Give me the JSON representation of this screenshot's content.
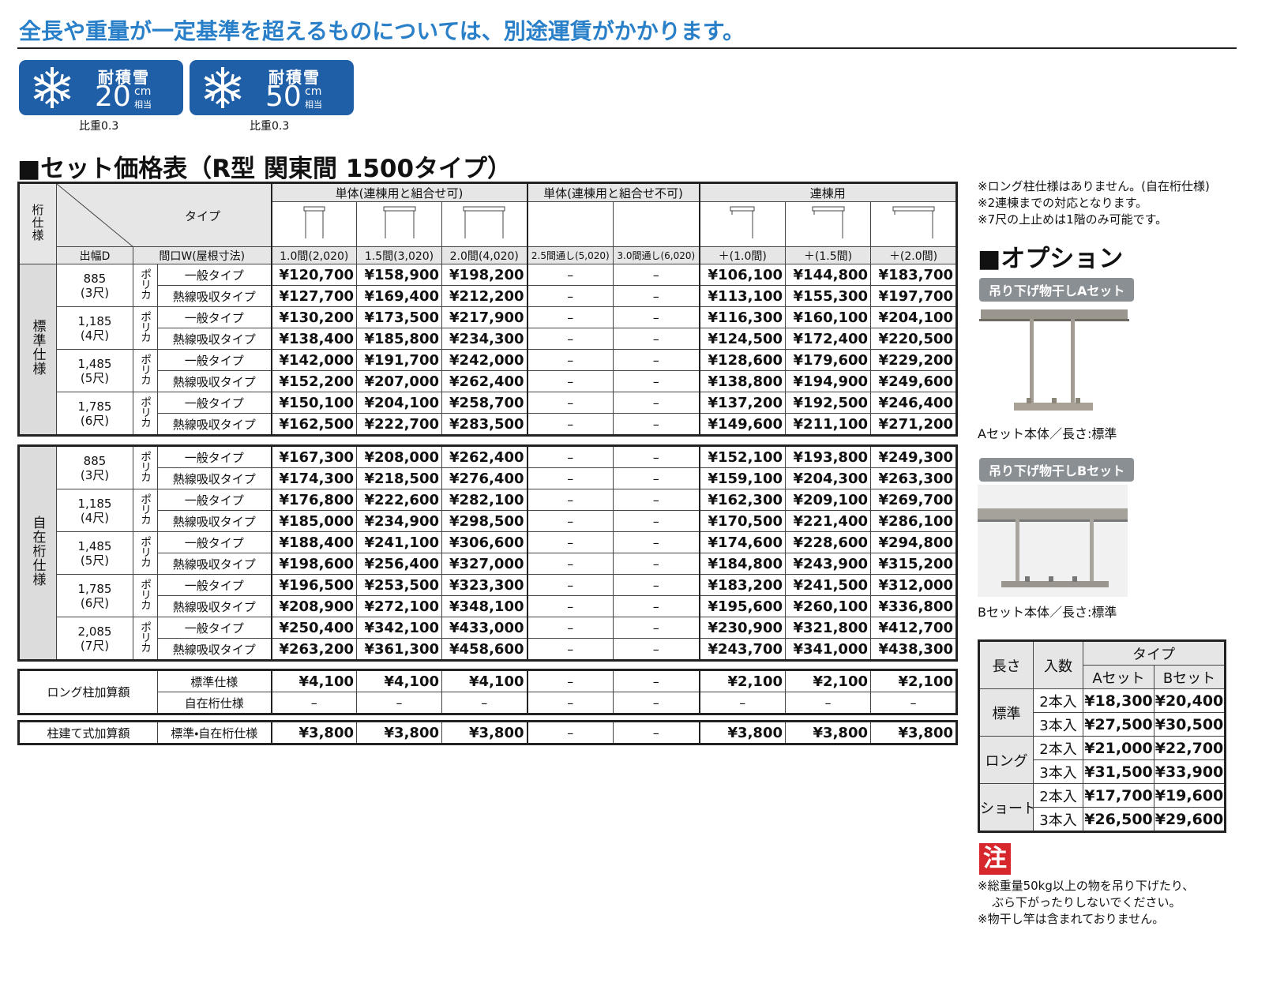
{
  "header": {
    "notice": "全長や重量が一定基準を超えるものについては、別途運賃がかかります。"
  },
  "badges": [
    {
      "label": "耐積雪",
      "value": "20",
      "unit": "cm",
      "unit_sub": "相当",
      "note": "比重0.3"
    },
    {
      "label": "耐積雪",
      "value": "50",
      "unit": "cm",
      "unit_sub": "相当",
      "note": "比重0.3"
    }
  ],
  "price_table": {
    "title": "■セット価格表（R型 関東間 1500タイプ）",
    "corner": {
      "spec": "桁仕様",
      "type": "タイプ",
      "depth": "出幅D",
      "width": "間口W(屋根寸法)"
    },
    "groups": [
      {
        "label": "単体(連棟用と組合せ可)",
        "span": 3
      },
      {
        "label": "単体(連棟用と組合せ不可)",
        "span": 2
      },
      {
        "label": "連棟用",
        "span": 3
      }
    ],
    "columns": [
      "1.0間(2,020)",
      "1.5間(3,020)",
      "2.0間(4,020)",
      "2.5間通し(5,020)",
      "3.0間通し(6,020)",
      "＋(1.0間)",
      "＋(1.5間)",
      "＋(2.0間)"
    ],
    "sections": [
      {
        "label": "標準仕様",
        "groups": [
          {
            "depth": "885",
            "shaku": "(3尺)",
            "material": "ポリカ",
            "rows": [
              {
                "type": "一般タイプ",
                "prices": [
                  "¥120,700",
                  "¥158,900",
                  "¥198,200",
                  "–",
                  "–",
                  "¥106,100",
                  "¥144,800",
                  "¥183,700"
                ]
              },
              {
                "type": "熱線吸収タイプ",
                "prices": [
                  "¥127,700",
                  "¥169,400",
                  "¥212,200",
                  "–",
                  "–",
                  "¥113,100",
                  "¥155,300",
                  "¥197,700"
                ]
              }
            ]
          },
          {
            "depth": "1,185",
            "shaku": "(4尺)",
            "material": "ポリカ",
            "rows": [
              {
                "type": "一般タイプ",
                "prices": [
                  "¥130,200",
                  "¥173,500",
                  "¥217,900",
                  "–",
                  "–",
                  "¥116,300",
                  "¥160,100",
                  "¥204,100"
                ]
              },
              {
                "type": "熱線吸収タイプ",
                "prices": [
                  "¥138,400",
                  "¥185,800",
                  "¥234,300",
                  "–",
                  "–",
                  "¥124,500",
                  "¥172,400",
                  "¥220,500"
                ]
              }
            ]
          },
          {
            "depth": "1,485",
            "shaku": "(5尺)",
            "material": "ポリカ",
            "rows": [
              {
                "type": "一般タイプ",
                "prices": [
                  "¥142,000",
                  "¥191,700",
                  "¥242,000",
                  "–",
                  "–",
                  "¥128,600",
                  "¥179,600",
                  "¥229,200"
                ]
              },
              {
                "type": "熱線吸収タイプ",
                "prices": [
                  "¥152,200",
                  "¥207,000",
                  "¥262,400",
                  "–",
                  "–",
                  "¥138,800",
                  "¥194,900",
                  "¥249,600"
                ]
              }
            ]
          },
          {
            "depth": "1,785",
            "shaku": "(6尺)",
            "material": "ポリカ",
            "rows": [
              {
                "type": "一般タイプ",
                "prices": [
                  "¥150,100",
                  "¥204,100",
                  "¥258,700",
                  "–",
                  "–",
                  "¥137,200",
                  "¥192,500",
                  "¥246,400"
                ]
              },
              {
                "type": "熱線吸収タイプ",
                "prices": [
                  "¥162,500",
                  "¥222,700",
                  "¥283,500",
                  "–",
                  "–",
                  "¥149,600",
                  "¥211,100",
                  "¥271,200"
                ]
              }
            ]
          }
        ]
      },
      {
        "label": "自在桁仕様",
        "groups": [
          {
            "depth": "885",
            "shaku": "(3尺)",
            "material": "ポリカ",
            "rows": [
              {
                "type": "一般タイプ",
                "prices": [
                  "¥167,300",
                  "¥208,000",
                  "¥262,400",
                  "–",
                  "–",
                  "¥152,100",
                  "¥193,800",
                  "¥249,300"
                ]
              },
              {
                "type": "熱線吸収タイプ",
                "prices": [
                  "¥174,300",
                  "¥218,500",
                  "¥276,400",
                  "–",
                  "–",
                  "¥159,100",
                  "¥204,300",
                  "¥263,300"
                ]
              }
            ]
          },
          {
            "depth": "1,185",
            "shaku": "(4尺)",
            "material": "ポリカ",
            "rows": [
              {
                "type": "一般タイプ",
                "prices": [
                  "¥176,800",
                  "¥222,600",
                  "¥282,100",
                  "–",
                  "–",
                  "¥162,300",
                  "¥209,100",
                  "¥269,700"
                ]
              },
              {
                "type": "熱線吸収タイプ",
                "prices": [
                  "¥185,000",
                  "¥234,900",
                  "¥298,500",
                  "–",
                  "–",
                  "¥170,500",
                  "¥221,400",
                  "¥286,100"
                ]
              }
            ]
          },
          {
            "depth": "1,485",
            "shaku": "(5尺)",
            "material": "ポリカ",
            "rows": [
              {
                "type": "一般タイプ",
                "prices": [
                  "¥188,400",
                  "¥241,100",
                  "¥306,600",
                  "–",
                  "–",
                  "¥174,600",
                  "¥228,600",
                  "¥294,800"
                ]
              },
              {
                "type": "熱線吸収タイプ",
                "prices": [
                  "¥198,600",
                  "¥256,400",
                  "¥327,000",
                  "–",
                  "–",
                  "¥184,800",
                  "¥243,900",
                  "¥315,200"
                ]
              }
            ]
          },
          {
            "depth": "1,785",
            "shaku": "(6尺)",
            "material": "ポリカ",
            "rows": [
              {
                "type": "一般タイプ",
                "prices": [
                  "¥196,500",
                  "¥253,500",
                  "¥323,300",
                  "–",
                  "–",
                  "¥183,200",
                  "¥241,500",
                  "¥312,000"
                ]
              },
              {
                "type": "熱線吸収タイプ",
                "prices": [
                  "¥208,900",
                  "¥272,100",
                  "¥348,100",
                  "–",
                  "–",
                  "¥195,600",
                  "¥260,100",
                  "¥336,800"
                ]
              }
            ]
          },
          {
            "depth": "2,085",
            "shaku": "(7尺)",
            "material": "ポリカ",
            "rows": [
              {
                "type": "一般タイプ",
                "prices": [
                  "¥250,400",
                  "¥342,100",
                  "¥433,000",
                  "–",
                  "–",
                  "¥230,900",
                  "¥321,800",
                  "¥412,700"
                ]
              },
              {
                "type": "熱線吸収タイプ",
                "prices": [
                  "¥263,200",
                  "¥361,300",
                  "¥458,600",
                  "–",
                  "–",
                  "¥243,700",
                  "¥341,000",
                  "¥438,300"
                ]
              }
            ]
          }
        ]
      }
    ],
    "extras": [
      {
        "label": "ロング柱加算額",
        "rows": [
          {
            "type": "標準仕様",
            "prices": [
              "¥4,100",
              "¥4,100",
              "¥4,100",
              "–",
              "–",
              "¥2,100",
              "¥2,100",
              "¥2,100"
            ]
          },
          {
            "type": "自在桁仕様",
            "prices": [
              "–",
              "–",
              "–",
              "–",
              "–",
              "–",
              "–",
              "–"
            ]
          }
        ]
      },
      {
        "label": "柱建て式加算額",
        "rows": [
          {
            "type": "標準・自在桁仕様",
            "prices": [
              "¥3,800",
              "¥3,800",
              "¥3,800",
              "–",
              "–",
              "¥3,800",
              "¥3,800",
              "¥3,800"
            ]
          }
        ]
      }
    ]
  },
  "notes": [
    "※ロング柱仕様はありません。(自在桁仕様)",
    "※2連棟までの対応となります。",
    "※7尺の上止めは1階のみ可能です。"
  ],
  "options": {
    "title": "■オプション",
    "items": [
      {
        "label": "吊り下げ物干しAセット",
        "caption": "Aセット本体／長さ:標準"
      },
      {
        "label": "吊り下げ物干しBセット",
        "caption": "Bセット本体／長さ:標準"
      }
    ],
    "table": {
      "headers": {
        "length": "長さ",
        "count": "入数",
        "type": "タイプ",
        "a": "Aセット",
        "b": "Bセット"
      },
      "groups": [
        {
          "length": "標準",
          "rows": [
            {
              "count": "2本入",
              "a": "¥18,300",
              "b": "¥20,400"
            },
            {
              "count": "3本入",
              "a": "¥27,500",
              "b": "¥30,500"
            }
          ]
        },
        {
          "length": "ロング",
          "rows": [
            {
              "count": "2本入",
              "a": "¥21,000",
              "b": "¥22,700"
            },
            {
              "count": "3本入",
              "a": "¥31,500",
              "b": "¥33,900"
            }
          ]
        },
        {
          "length": "ショート",
          "rows": [
            {
              "count": "2本入",
              "a": "¥17,700",
              "b": "¥19,600"
            },
            {
              "count": "3本入",
              "a": "¥26,500",
              "b": "¥29,600"
            }
          ]
        }
      ]
    }
  },
  "caution": {
    "mark": "注",
    "lines": [
      "※総重量50kg以上の物を吊り下げたり、",
      "ぶら下がったりしないでください。",
      "※物干し竿は含まれておりません。"
    ]
  }
}
